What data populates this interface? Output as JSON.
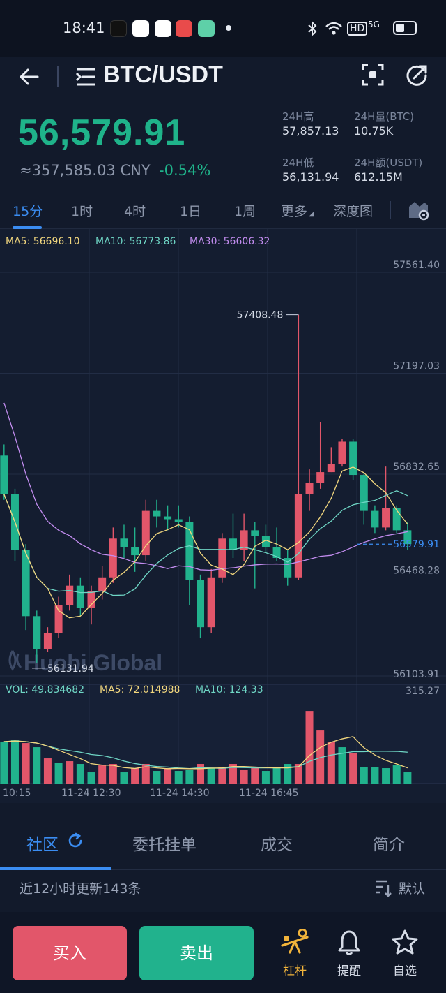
{
  "status_bar": {
    "time": "18:41",
    "network": "HD",
    "signal": "5G"
  },
  "header": {
    "title": "BTC/USDT"
  },
  "price": {
    "last": "56,579.91",
    "cny": "≈357,585.03 CNY",
    "change": "-0.54%"
  },
  "stats": {
    "high_label": "24H高",
    "high_value": "57,857.13",
    "vol_btc_label": "24H量(BTC)",
    "vol_btc_value": "10.75K",
    "low_label": "24H低",
    "low_value": "56,131.94",
    "amt_label": "24H额(USDT)",
    "amt_value": "612.15M"
  },
  "intervals": [
    "15分",
    "1时",
    "4时",
    "1日",
    "1周",
    "更多",
    "深度图"
  ],
  "active_interval": "15分",
  "ma_legend": {
    "ma5": "MA5: 56696.10",
    "ma10": "MA10: 56773.86",
    "ma30": "MA30: 56606.32"
  },
  "vol_legend": {
    "vol": "VOL: 49.834682",
    "ma5": "MA5: 72.014988",
    "ma10": "MA10: 124.33"
  },
  "watermark": "Huobi Global",
  "colors": {
    "up": "#e2566a",
    "down": "#21b28d",
    "accent": "#3b8df2",
    "ma5": "#f2d77e",
    "ma10": "#6fd6c5",
    "ma30": "#c38df0"
  },
  "chart_data": {
    "type": "candlestick",
    "price_axis_labels": [
      "57561.40",
      "57197.03",
      "56832.65",
      "56579.91",
      "56468.28",
      "56103.91"
    ],
    "volume_axis_label": "315.27",
    "time_labels": [
      "10:15",
      "11-24 12:30",
      "11-24 14:30",
      "11-24 16:45"
    ],
    "max_marker": "57408.48",
    "min_marker": "56131.94",
    "current_price": 56579.91,
    "candles": [
      {
        "o": 56900,
        "c": 56760,
        "h": 56940,
        "l": 56740
      },
      {
        "o": 56760,
        "c": 56560,
        "h": 56780,
        "l": 56520
      },
      {
        "o": 56560,
        "c": 56320,
        "h": 56580,
        "l": 56270
      },
      {
        "o": 56320,
        "c": 56200,
        "h": 56340,
        "l": 56150
      },
      {
        "o": 56200,
        "c": 56260,
        "h": 56280,
        "l": 56190
      },
      {
        "o": 56260,
        "c": 56360,
        "h": 56390,
        "l": 56240
      },
      {
        "o": 56360,
        "c": 56430,
        "h": 56470,
        "l": 56340
      },
      {
        "o": 56430,
        "c": 56350,
        "h": 56460,
        "l": 56320
      },
      {
        "o": 56350,
        "c": 56410,
        "h": 56430,
        "l": 56290
      },
      {
        "o": 56410,
        "c": 56460,
        "h": 56500,
        "l": 56380
      },
      {
        "o": 56460,
        "c": 56600,
        "h": 56640,
        "l": 56440
      },
      {
        "o": 56600,
        "c": 56570,
        "h": 56650,
        "l": 56530
      },
      {
        "o": 56570,
        "c": 56540,
        "h": 56640,
        "l": 56480
      },
      {
        "o": 56540,
        "c": 56700,
        "h": 56740,
        "l": 56520
      },
      {
        "o": 56700,
        "c": 56680,
        "h": 56740,
        "l": 56640
      },
      {
        "o": 56680,
        "c": 56670,
        "h": 56720,
        "l": 56630
      },
      {
        "o": 56670,
        "c": 56660,
        "h": 56720,
        "l": 56640
      },
      {
        "o": 56660,
        "c": 56450,
        "h": 56680,
        "l": 56360
      },
      {
        "o": 56450,
        "c": 56280,
        "h": 56470,
        "l": 56240
      },
      {
        "o": 56280,
        "c": 56460,
        "h": 56490,
        "l": 56260
      },
      {
        "o": 56460,
        "c": 56600,
        "h": 56620,
        "l": 56440
      },
      {
        "o": 56600,
        "c": 56560,
        "h": 56690,
        "l": 56530
      },
      {
        "o": 56560,
        "c": 56630,
        "h": 56690,
        "l": 56520
      },
      {
        "o": 56630,
        "c": 56610,
        "h": 56660,
        "l": 56420
      },
      {
        "o": 56610,
        "c": 56570,
        "h": 56650,
        "l": 56550
      },
      {
        "o": 56570,
        "c": 56530,
        "h": 56640,
        "l": 56520
      },
      {
        "o": 56530,
        "c": 56460,
        "h": 56560,
        "l": 56430
      },
      {
        "o": 56460,
        "c": 56760,
        "h": 57408.48,
        "l": 56450
      },
      {
        "o": 56760,
        "c": 56800,
        "h": 56850,
        "l": 56700
      },
      {
        "o": 56800,
        "c": 56840,
        "h": 57020,
        "l": 56780
      },
      {
        "o": 56840,
        "c": 56870,
        "h": 56930,
        "l": 56840
      },
      {
        "o": 56870,
        "c": 56950,
        "h": 56960,
        "l": 56860
      },
      {
        "o": 56950,
        "c": 56830,
        "h": 56960,
        "l": 56810
      },
      {
        "o": 56830,
        "c": 56700,
        "h": 56840,
        "l": 56650
      },
      {
        "o": 56700,
        "c": 56640,
        "h": 56720,
        "l": 56620
      },
      {
        "o": 56640,
        "c": 56710,
        "h": 56860,
        "l": 56630
      },
      {
        "o": 56710,
        "c": 56630,
        "h": 56720,
        "l": 56620
      },
      {
        "o": 56630,
        "c": 56580,
        "h": 56660,
        "l": 56560
      }
    ],
    "volume": [
      {
        "v": 150,
        "up": false
      },
      {
        "v": 155,
        "up": false
      },
      {
        "v": 145,
        "up": true
      },
      {
        "v": 130,
        "up": false
      },
      {
        "v": 90,
        "up": true
      },
      {
        "v": 75,
        "up": false
      },
      {
        "v": 80,
        "up": true
      },
      {
        "v": 70,
        "up": false
      },
      {
        "v": 40,
        "up": false
      },
      {
        "v": 65,
        "up": true
      },
      {
        "v": 70,
        "up": true
      },
      {
        "v": 40,
        "up": false
      },
      {
        "v": 55,
        "up": true
      },
      {
        "v": 70,
        "up": true
      },
      {
        "v": 45,
        "up": false
      },
      {
        "v": 55,
        "up": true
      },
      {
        "v": 45,
        "up": false
      },
      {
        "v": 50,
        "up": false
      },
      {
        "v": 70,
        "up": true
      },
      {
        "v": 55,
        "up": false
      },
      {
        "v": 60,
        "up": true
      },
      {
        "v": 70,
        "up": true
      },
      {
        "v": 50,
        "up": true
      },
      {
        "v": 60,
        "up": true
      },
      {
        "v": 45,
        "up": false
      },
      {
        "v": 55,
        "up": false
      },
      {
        "v": 70,
        "up": false
      },
      {
        "v": 70,
        "up": true
      },
      {
        "v": 260,
        "up": true
      },
      {
        "v": 190,
        "up": true
      },
      {
        "v": 150,
        "up": true
      },
      {
        "v": 130,
        "up": false
      },
      {
        "v": 110,
        "up": true
      },
      {
        "v": 60,
        "up": false
      },
      {
        "v": 60,
        "up": false
      },
      {
        "v": 55,
        "up": false
      },
      {
        "v": 65,
        "up": false
      },
      {
        "v": 40,
        "up": false
      }
    ],
    "ylim": [
      56103.91,
      57561.4
    ]
  },
  "bottom_tabs": [
    "社区",
    "委托挂单",
    "成交",
    "简介"
  ],
  "update_text": "近12小时更新143条",
  "sort_label": "默认",
  "actions": {
    "buy": "买入",
    "sell": "卖出"
  },
  "nav": {
    "lever": "杠杆",
    "alert": "提醒",
    "watch": "自选"
  }
}
